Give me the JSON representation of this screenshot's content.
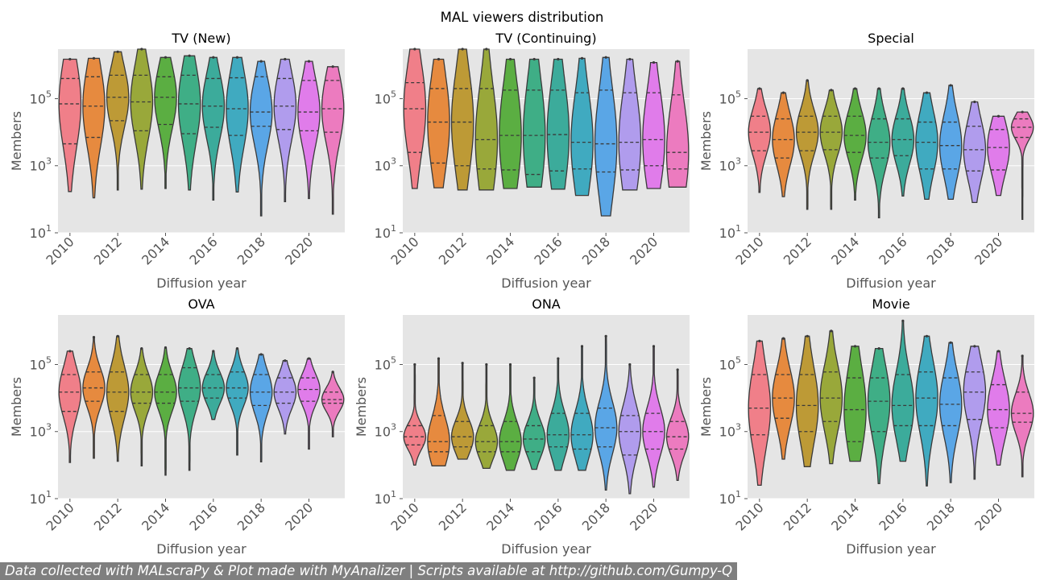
{
  "suptitle": "MAL viewers distribution",
  "footer_text": "Data collected with MALscraPy & Plot made with MyAnalizer | Scripts available at http://github.com/Gumpy-Q",
  "axes_style": {
    "background": "#e5e5e5",
    "grid": true,
    "yscale": "log"
  },
  "palette": [
    "#f07f89",
    "#e68a3f",
    "#bd9a36",
    "#99a83a",
    "#5bae42",
    "#3fae86",
    "#3cab9b",
    "#40aac0",
    "#5aa6e6",
    "#b09ced",
    "#e07cea",
    "#ec7bbf"
  ],
  "chart_data": [
    {
      "type": "violin",
      "title": "TV (New)",
      "xlabel": "Diffusion year",
      "ylabel": "Members",
      "yscale": "log",
      "ylim": [
        10,
        3000000
      ],
      "yticks": [
        "10^1",
        "10^3",
        "10^5"
      ],
      "xticks": [
        "2010",
        "2012",
        "2014",
        "2016",
        "2018",
        "2020"
      ],
      "categories": [
        "2010",
        "2011",
        "2012",
        "2013",
        "2014",
        "2015",
        "2016",
        "2017",
        "2018",
        "2019",
        "2020",
        "2021"
      ],
      "stats": [
        {
          "min": 170,
          "q1": 4500,
          "median": 70000,
          "q3": 400000,
          "max": 1500000
        },
        {
          "min": 110,
          "q1": 7000,
          "median": 60000,
          "q3": 450000,
          "max": 1600000
        },
        {
          "min": 190,
          "q1": 22000,
          "median": 110000,
          "q3": 500000,
          "max": 2500000
        },
        {
          "min": 200,
          "q1": 11000,
          "median": 80000,
          "q3": 500000,
          "max": 3000000
        },
        {
          "min": 210,
          "q1": 17000,
          "median": 110000,
          "q3": 450000,
          "max": 1700000
        },
        {
          "min": 190,
          "q1": 9000,
          "median": 70000,
          "q3": 500000,
          "max": 1900000
        },
        {
          "min": 95,
          "q1": 14000,
          "median": 60000,
          "q3": 400000,
          "max": 1700000
        },
        {
          "min": 165,
          "q1": 8000,
          "median": 50000,
          "q3": 420000,
          "max": 1700000
        },
        {
          "min": 32,
          "q1": 15000,
          "median": 40000,
          "q3": 450000,
          "max": 1300000
        },
        {
          "min": 85,
          "q1": 12000,
          "median": 60000,
          "q3": 400000,
          "max": 1500000
        },
        {
          "min": 105,
          "q1": 11000,
          "median": 40000,
          "q3": 350000,
          "max": 1300000
        },
        {
          "min": 36,
          "q1": 10000,
          "median": 50000,
          "q3": 350000,
          "max": 900000
        }
      ]
    },
    {
      "type": "violin",
      "title": "TV (Continuing)",
      "xlabel": "Diffusion year",
      "ylabel": "",
      "yscale": "log",
      "ylim": [
        10,
        3000000
      ],
      "yticks": [
        "10^1",
        "10^3",
        "10^5"
      ],
      "xticks": [
        "2010",
        "2012",
        "2014",
        "2016",
        "2018",
        "2020"
      ],
      "categories": [
        "2010",
        "2011",
        "2012",
        "2013",
        "2014",
        "2015",
        "2016",
        "2017",
        "2018",
        "2019",
        "2020",
        "2021"
      ],
      "stats": [
        {
          "min": 210,
          "q1": 2500,
          "median": 50000,
          "q3": 300000,
          "max": 3000000
        },
        {
          "min": 220,
          "q1": 1200,
          "median": 20000,
          "q3": 200000,
          "max": 1500000
        },
        {
          "min": 190,
          "q1": 1000,
          "median": 20000,
          "q3": 200000,
          "max": 3000000
        },
        {
          "min": 190,
          "q1": 800,
          "median": 6000,
          "q3": 200000,
          "max": 3000000
        },
        {
          "min": 210,
          "q1": 750,
          "median": 8000,
          "q3": 180000,
          "max": 1500000
        },
        {
          "min": 230,
          "q1": 550,
          "median": 8000,
          "q3": 180000,
          "max": 1500000
        },
        {
          "min": 200,
          "q1": 700,
          "median": 8500,
          "q3": 180000,
          "max": 1500000
        },
        {
          "min": 130,
          "q1": 800,
          "median": 5000,
          "q3": 150000,
          "max": 1600000
        },
        {
          "min": 32,
          "q1": 650,
          "median": 4500,
          "q3": 180000,
          "max": 1700000
        },
        {
          "min": 190,
          "q1": 750,
          "median": 5000,
          "q3": 150000,
          "max": 1500000
        },
        {
          "min": 210,
          "q1": 1000,
          "median": 6000,
          "q3": 150000,
          "max": 1200000
        },
        {
          "min": 230,
          "q1": 800,
          "median": 2500,
          "q3": 130000,
          "max": 1300000
        }
      ]
    },
    {
      "type": "violin",
      "title": "Special",
      "xlabel": "Diffusion year",
      "ylabel": "Members",
      "yscale": "log",
      "ylim": [
        10,
        3000000
      ],
      "yticks": [
        "10^1",
        "10^3",
        "10^5"
      ],
      "xticks": [
        "2010",
        "2012",
        "2014",
        "2016",
        "2018",
        "2020"
      ],
      "categories": [
        "2010",
        "2011",
        "2012",
        "2013",
        "2014",
        "2015",
        "2016",
        "2017",
        "2018",
        "2019",
        "2020",
        "2021"
      ],
      "stats": [
        {
          "min": 160,
          "q1": 2800,
          "median": 10000,
          "q3": 30000,
          "max": 200000
        },
        {
          "min": 120,
          "q1": 1700,
          "median": 6000,
          "q3": 25000,
          "max": 150000
        },
        {
          "min": 50,
          "q1": 2800,
          "median": 10000,
          "q3": 30000,
          "max": 350000
        },
        {
          "min": 50,
          "q1": 3000,
          "median": 10000,
          "q3": 30000,
          "max": 180000
        },
        {
          "min": 95,
          "q1": 2500,
          "median": 8000,
          "q3": 30000,
          "max": 200000
        },
        {
          "min": 28,
          "q1": 1700,
          "median": 5000,
          "q3": 25000,
          "max": 200000
        },
        {
          "min": 125,
          "q1": 2000,
          "median": 6000,
          "q3": 25000,
          "max": 200000
        },
        {
          "min": 100,
          "q1": 800,
          "median": 5000,
          "q3": 20000,
          "max": 150000
        },
        {
          "min": 100,
          "q1": 800,
          "median": 4000,
          "q3": 20000,
          "max": 250000
        },
        {
          "min": 80,
          "q1": 700,
          "median": 3000,
          "q3": 15000,
          "max": 80000
        },
        {
          "min": 130,
          "q1": 750,
          "median": 3500,
          "q3": 12000,
          "max": 30000
        },
        {
          "min": 25,
          "q1": 7000,
          "median": 14000,
          "q3": 25000,
          "max": 40000
        }
      ]
    },
    {
      "type": "violin",
      "title": "OVA",
      "xlabel": "Diffusion year",
      "ylabel": "Members",
      "yscale": "log",
      "ylim": [
        10,
        3000000
      ],
      "yticks": [
        "10^1",
        "10^3",
        "10^5"
      ],
      "xticks": [
        "2010",
        "2012",
        "2014",
        "2016",
        "2018",
        "2020"
      ],
      "categories": [
        "2010",
        "2011",
        "2012",
        "2013",
        "2014",
        "2015",
        "2016",
        "2017",
        "2018",
        "2019",
        "2020",
        "2021"
      ],
      "stats": [
        {
          "min": 120,
          "q1": 4000,
          "median": 15000,
          "q3": 50000,
          "max": 250000
        },
        {
          "min": 160,
          "q1": 8000,
          "median": 20000,
          "q3": 60000,
          "max": 650000
        },
        {
          "min": 130,
          "q1": 4000,
          "median": 15000,
          "q3": 60000,
          "max": 700000
        },
        {
          "min": 95,
          "q1": 7000,
          "median": 15000,
          "q3": 50000,
          "max": 300000
        },
        {
          "min": 50,
          "q1": 7000,
          "median": 15000,
          "q3": 50000,
          "max": 320000
        },
        {
          "min": 70,
          "q1": 8000,
          "median": 20000,
          "q3": 80000,
          "max": 300000
        },
        {
          "min": 2300,
          "q1": 10000,
          "median": 20000,
          "q3": 50000,
          "max": 250000
        },
        {
          "min": 200,
          "q1": 10000,
          "median": 20000,
          "q3": 60000,
          "max": 300000
        },
        {
          "min": 125,
          "q1": 6000,
          "median": 15000,
          "q3": 50000,
          "max": 200000
        },
        {
          "min": 850,
          "q1": 7000,
          "median": 15000,
          "q3": 40000,
          "max": 130000
        },
        {
          "min": 300,
          "q1": 8000,
          "median": 18000,
          "q3": 40000,
          "max": 150000
        },
        {
          "min": 700,
          "q1": 7000,
          "median": 9000,
          "q3": 15000,
          "max": 60000
        }
      ]
    },
    {
      "type": "violin",
      "title": "ONA",
      "xlabel": "Diffusion year",
      "ylabel": "Members",
      "yscale": "log",
      "ylim": [
        10,
        3000000
      ],
      "yticks": [
        "10^1",
        "10^3",
        "10^5"
      ],
      "xticks": [
        "2010",
        "2012",
        "2014",
        "2016",
        "2018",
        "2020"
      ],
      "categories": [
        "2010",
        "2011",
        "2012",
        "2013",
        "2014",
        "2015",
        "2016",
        "2017",
        "2018",
        "2019",
        "2020",
        "2021"
      ],
      "stats": [
        {
          "min": 100,
          "q1": 400,
          "median": 700,
          "q3": 1500,
          "max": 100000
        },
        {
          "min": 95,
          "q1": 250,
          "median": 500,
          "q3": 3000,
          "max": 150000
        },
        {
          "min": 150,
          "q1": 350,
          "median": 700,
          "q3": 2000,
          "max": 110000
        },
        {
          "min": 80,
          "q1": 250,
          "median": 500,
          "q3": 1500,
          "max": 100000
        },
        {
          "min": 70,
          "q1": 250,
          "median": 500,
          "q3": 2000,
          "max": 100000
        },
        {
          "min": 75,
          "q1": 250,
          "median": 600,
          "q3": 1500,
          "max": 40000
        },
        {
          "min": 70,
          "q1": 350,
          "median": 800,
          "q3": 3500,
          "max": 150000
        },
        {
          "min": 70,
          "q1": 300,
          "median": 800,
          "q3": 3500,
          "max": 350000
        },
        {
          "min": 18,
          "q1": 350,
          "median": 1300,
          "q3": 5000,
          "max": 700000
        },
        {
          "min": 14,
          "q1": 200,
          "median": 1000,
          "q3": 3000,
          "max": 100000
        },
        {
          "min": 22,
          "q1": 300,
          "median": 1000,
          "q3": 3500,
          "max": 350000
        },
        {
          "min": 35,
          "q1": 300,
          "median": 700,
          "q3": 2000,
          "max": 70000
        }
      ]
    },
    {
      "type": "violin",
      "title": "Movie",
      "xlabel": "Diffusion year",
      "ylabel": "Members",
      "yscale": "log",
      "ylim": [
        10,
        3000000
      ],
      "yticks": [
        "10^1",
        "10^3",
        "10^5"
      ],
      "xticks": [
        "2010",
        "2012",
        "2014",
        "2016",
        "2018",
        "2020"
      ],
      "categories": [
        "2010",
        "2011",
        "2012",
        "2013",
        "2014",
        "2015",
        "2016",
        "2017",
        "2018",
        "2019",
        "2020",
        "2021"
      ],
      "stats": [
        {
          "min": 25,
          "q1": 800,
          "median": 5000,
          "q3": 50000,
          "max": 500000
        },
        {
          "min": 150,
          "q1": 2500,
          "median": 10000,
          "q3": 50000,
          "max": 600000
        },
        {
          "min": 90,
          "q1": 1000,
          "median": 6000,
          "q3": 50000,
          "max": 700000
        },
        {
          "min": 110,
          "q1": 2000,
          "median": 10000,
          "q3": 60000,
          "max": 1000000
        },
        {
          "min": 130,
          "q1": 500,
          "median": 4500,
          "q3": 40000,
          "max": 350000
        },
        {
          "min": 28,
          "q1": 1000,
          "median": 8000,
          "q3": 40000,
          "max": 300000
        },
        {
          "min": 130,
          "q1": 1500,
          "median": 6000,
          "q3": 50000,
          "max": 2000000
        },
        {
          "min": 24,
          "q1": 1500,
          "median": 10000,
          "q3": 60000,
          "max": 700000
        },
        {
          "min": 30,
          "q1": 1500,
          "median": 6500,
          "q3": 40000,
          "max": 450000
        },
        {
          "min": 38,
          "q1": 2300,
          "median": 15000,
          "q3": 60000,
          "max": 350000
        },
        {
          "min": 100,
          "q1": 1300,
          "median": 4500,
          "q3": 25000,
          "max": 250000
        },
        {
          "min": 45,
          "q1": 1900,
          "median": 3500,
          "q3": 15000,
          "max": 180000
        }
      ]
    }
  ]
}
